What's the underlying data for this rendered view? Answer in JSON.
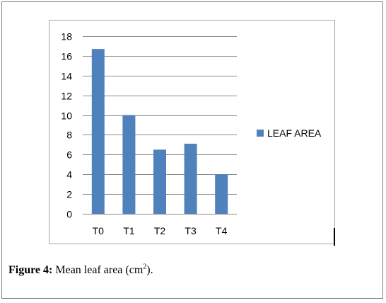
{
  "chart_data": {
    "type": "bar",
    "categories": [
      "T0",
      "T1",
      "T2",
      "T3",
      "T4"
    ],
    "series": [
      {
        "name": "LEAF AREA",
        "values": [
          16.7,
          10.0,
          6.5,
          7.1,
          4.0
        ],
        "color": "#4f81bd"
      }
    ],
    "ylim": [
      0,
      18
    ],
    "yticks": [
      0,
      2,
      4,
      6,
      8,
      10,
      12,
      14,
      16,
      18
    ],
    "grid": true,
    "legend_position": "right"
  },
  "caption": {
    "label": "Figure 4:",
    "text": " Mean leaf area (cm",
    "superscript": "2",
    "suffix": ")."
  }
}
